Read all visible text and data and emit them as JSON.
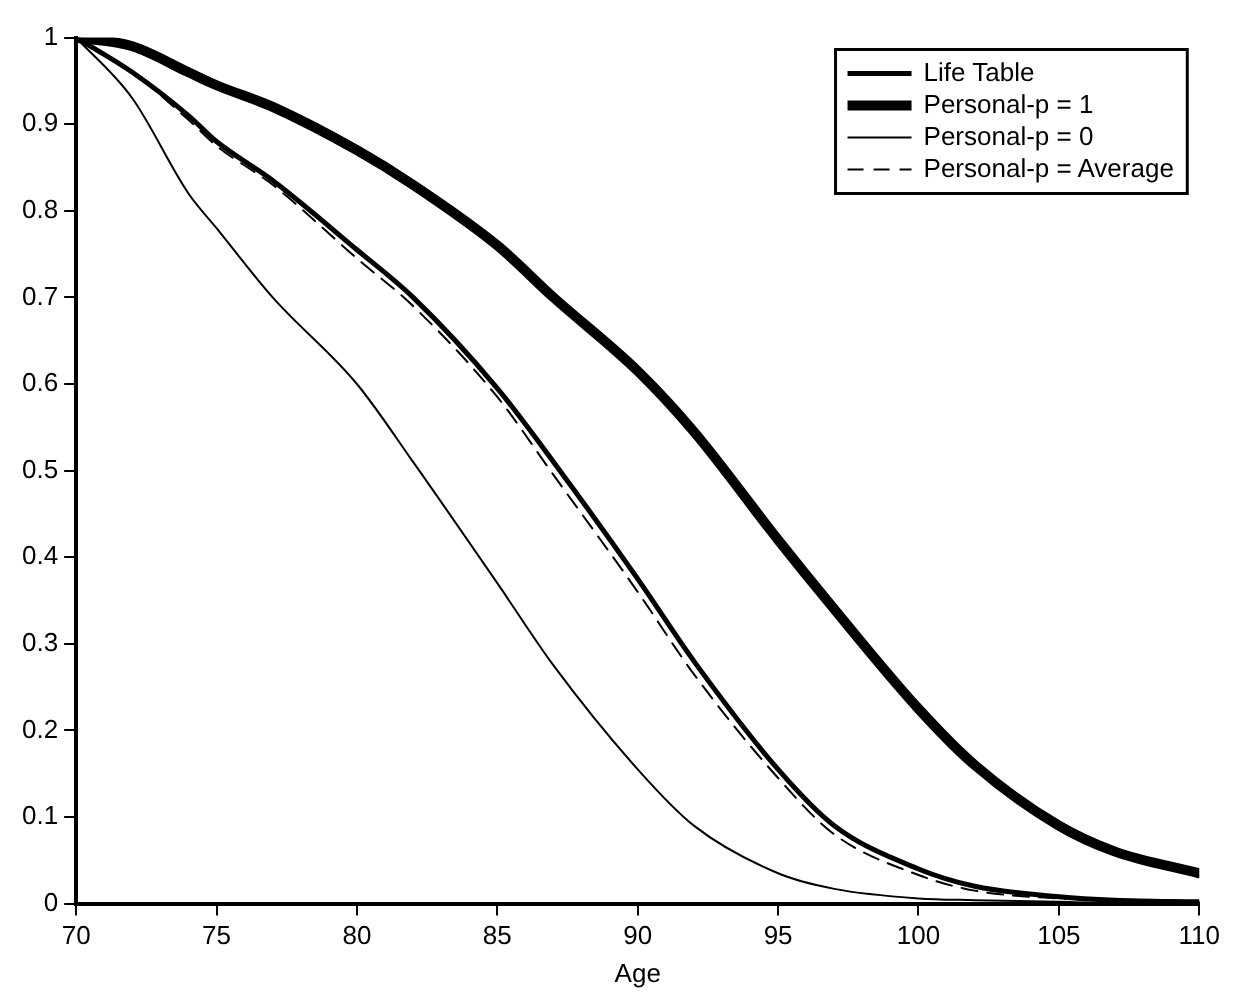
{
  "chart_data": {
    "type": "line",
    "xlabel": "Age",
    "x": [
      70,
      72,
      74,
      75,
      77,
      80,
      82,
      85,
      87,
      90,
      92,
      95,
      97,
      100,
      102,
      105,
      107,
      110
    ],
    "series": [
      {
        "name": "Life Table",
        "color": "#000000",
        "line_style": "solid",
        "values": [
          1,
          0.96,
          0.91,
          0.88,
          0.835,
          0.755,
          0.7,
          0.595,
          0.51,
          0.375,
          0.28,
          0.155,
          0.09,
          0.04,
          0.02,
          0.008,
          0.004,
          0.002
        ]
      },
      {
        "name": "Personal-p = 1",
        "color": "#000000",
        "line_style": "solid",
        "values": [
          1,
          0.99,
          0.96,
          0.945,
          0.92,
          0.87,
          0.83,
          0.76,
          0.7,
          0.615,
          0.545,
          0.42,
          0.34,
          0.225,
          0.16,
          0.09,
          0.06,
          0.035
        ]
      },
      {
        "name": "Personal-p = 0",
        "color": "#000000",
        "line_style": "solid",
        "values": [
          1,
          0.93,
          0.82,
          0.78,
          0.7,
          0.6,
          0.51,
          0.37,
          0.275,
          0.155,
          0.09,
          0.035,
          0.017,
          0.006,
          0.004,
          0.002,
          0.001,
          0.001
        ]
      },
      {
        "name": "Personal-p = Average",
        "color": "#000000",
        "line_style": "dashed",
        "values": [
          1,
          0.96,
          0.905,
          0.875,
          0.83,
          0.745,
          0.69,
          0.585,
          0.495,
          0.36,
          0.265,
          0.145,
          0.08,
          0.033,
          0.015,
          0.006,
          0.004,
          0.002
        ]
      }
    ],
    "xlim": [
      70,
      110
    ],
    "xticks": [
      70,
      75,
      80,
      85,
      90,
      95,
      100,
      105,
      110
    ],
    "ylim": [
      0,
      1
    ],
    "yticks": [
      0,
      0.1,
      0.2,
      0.3,
      0.4,
      0.5,
      0.6,
      0.7,
      0.8,
      0.9,
      1
    ],
    "grid": false,
    "legend": "top right",
    "marker": "none"
  }
}
